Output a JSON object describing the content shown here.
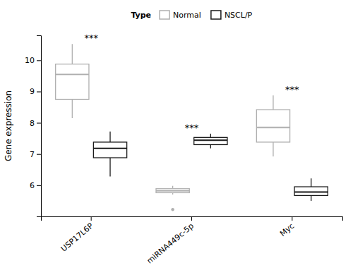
{
  "chart_data": {
    "type": "box",
    "ylabel": "Gene expression",
    "categories": [
      "USP17L6P",
      "miRNA449c-5p",
      "Myc"
    ],
    "ylim": [
      5.0,
      10.8
    ],
    "yticks": [
      6,
      7,
      8,
      9,
      10
    ],
    "legend": "top",
    "legend_title": "Type",
    "annotations": [
      "***",
      "***",
      "***"
    ],
    "series": [
      {
        "name": "Normal",
        "color": "#b0b0b0",
        "values": [
          {
            "whisker_low": 8.15,
            "q1": 8.75,
            "median": 9.55,
            "q3": 9.88,
            "whisker_high": 10.52,
            "fliers": []
          },
          {
            "whisker_low": 5.7,
            "q1": 5.76,
            "median": 5.82,
            "q3": 5.89,
            "whisker_high": 5.98,
            "fliers": [
              5.22
            ]
          },
          {
            "whisker_low": 6.92,
            "q1": 7.38,
            "median": 7.85,
            "q3": 8.42,
            "whisker_high": 8.88,
            "fliers": []
          }
        ]
      },
      {
        "name": "NSCL/P",
        "color": "#1a1a1a",
        "values": [
          {
            "whisker_low": 6.28,
            "q1": 6.88,
            "median": 7.18,
            "q3": 7.38,
            "whisker_high": 7.72,
            "fliers": []
          },
          {
            "whisker_low": 7.18,
            "q1": 7.3,
            "median": 7.44,
            "q3": 7.53,
            "whisker_high": 7.65,
            "fliers": []
          },
          {
            "whisker_low": 5.5,
            "q1": 5.67,
            "median": 5.78,
            "q3": 5.95,
            "whisker_high": 6.22,
            "fliers": []
          }
        ]
      }
    ]
  }
}
